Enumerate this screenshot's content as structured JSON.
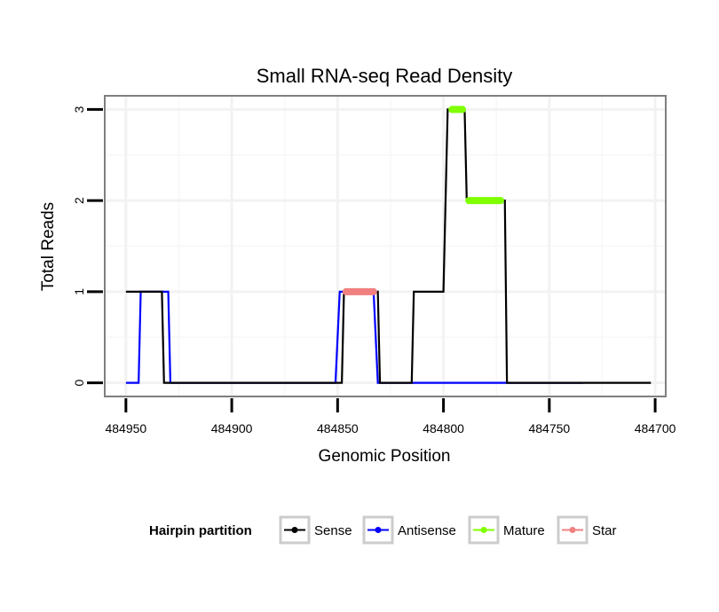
{
  "chart_data": {
    "type": "line",
    "title": "Small RNA-seq Read Density",
    "xlabel": "Genomic Position",
    "ylabel": "Total Reads",
    "xlim": [
      484960,
      484695
    ],
    "ylim": [
      -0.15,
      3.15
    ],
    "x_reversed": true,
    "x_ticks": [
      484950,
      484900,
      484850,
      484800,
      484750,
      484700
    ],
    "x_tick_labels": [
      "484950",
      "484900",
      "484850",
      "484800",
      "484750",
      "484700"
    ],
    "y_ticks": [
      0,
      1,
      2,
      3
    ],
    "y_tick_labels": [
      "0",
      "1",
      "2",
      "3"
    ],
    "grid": true,
    "legend": {
      "title": "Hairpin partition",
      "placement": "bottom",
      "entries": [
        {
          "label": "Sense",
          "color": "#000000"
        },
        {
          "label": "Antisense",
          "color": "#0000ff"
        },
        {
          "label": "Mature",
          "color": "#7fff00"
        },
        {
          "label": "Star",
          "color": "#f08080"
        }
      ]
    },
    "series": [
      {
        "name": "Antisense",
        "color": "#0000ff",
        "points": [
          [
            484950,
            0
          ],
          [
            484944,
            0
          ],
          [
            484943,
            1
          ],
          [
            484930,
            1
          ],
          [
            484929,
            0
          ],
          [
            484851,
            0
          ],
          [
            484849,
            1
          ],
          [
            484833,
            1
          ],
          [
            484831,
            0
          ],
          [
            484734,
            0
          ]
        ]
      },
      {
        "name": "Sense",
        "color": "#000000",
        "points": [
          [
            484950,
            1
          ],
          [
            484933,
            1
          ],
          [
            484932,
            0
          ],
          [
            484848,
            0
          ],
          [
            484847,
            1
          ],
          [
            484831,
            1
          ],
          [
            484830,
            0
          ],
          [
            484815,
            0
          ],
          [
            484814,
            1
          ],
          [
            484800,
            1
          ],
          [
            484798,
            3
          ],
          [
            484790,
            3
          ],
          [
            484789,
            2
          ],
          [
            484771,
            2
          ],
          [
            484770,
            0
          ],
          [
            484702,
            0
          ]
        ]
      },
      {
        "name": "Star",
        "color": "#f08080",
        "points": [
          [
            484846,
            1
          ],
          [
            484833,
            1
          ]
        ]
      },
      {
        "name": "Mature",
        "color": "#7fff00",
        "segments": [
          [
            [
              484796,
              3
            ],
            [
              484791,
              3
            ]
          ],
          [
            [
              484788,
              2
            ],
            [
              484773,
              2
            ]
          ]
        ]
      }
    ]
  }
}
